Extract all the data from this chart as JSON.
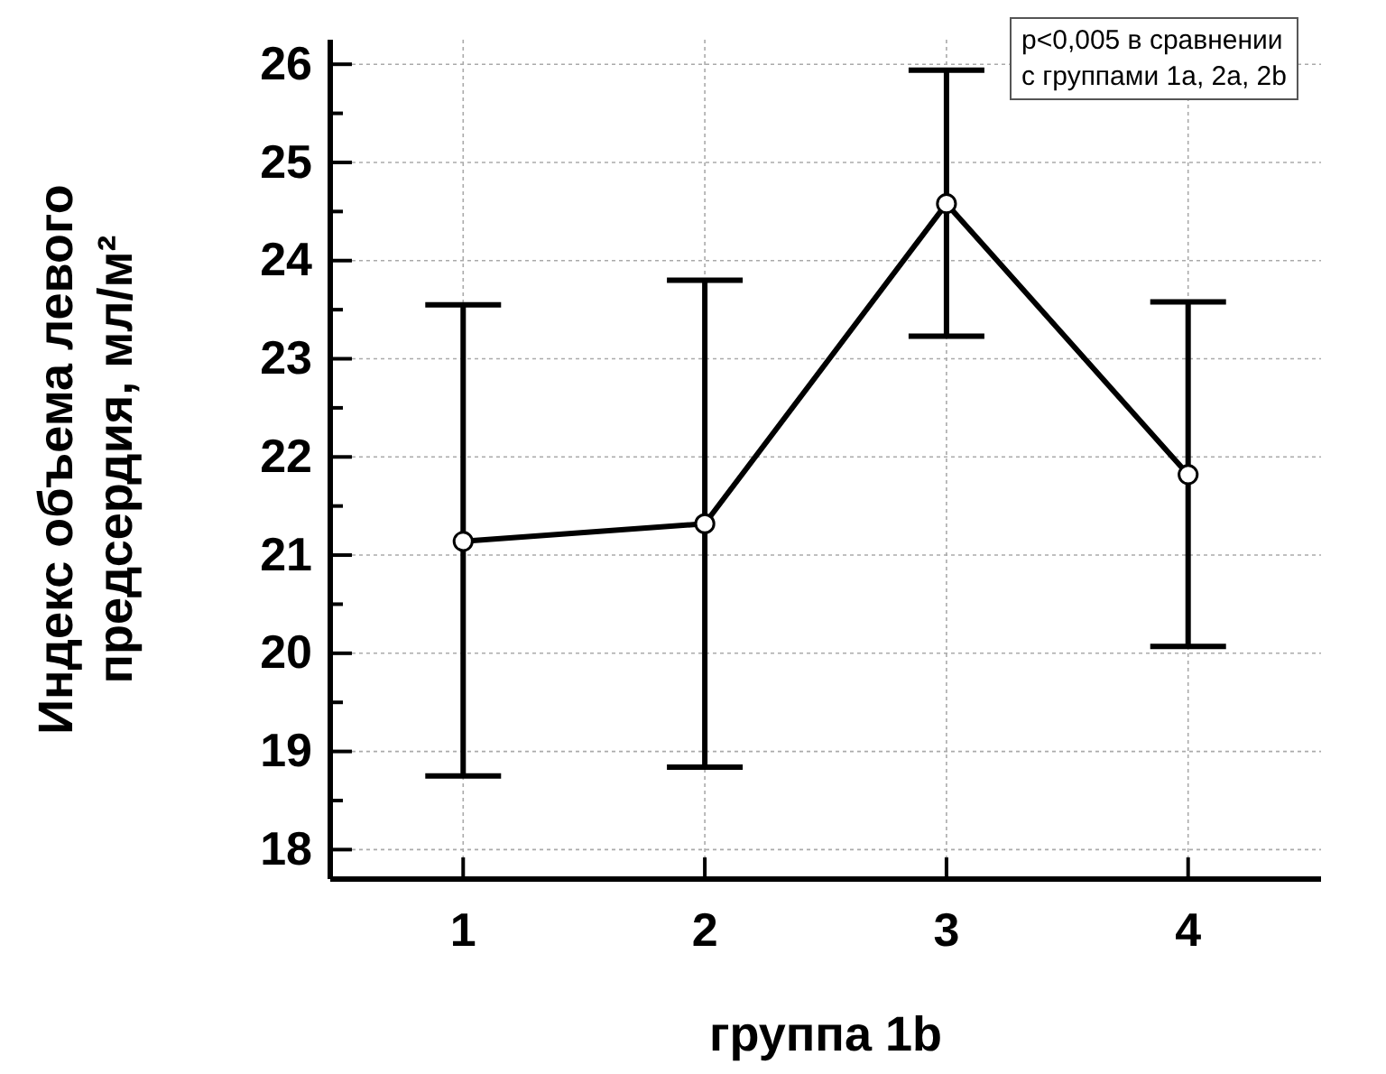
{
  "chart_data": {
    "type": "line",
    "xlabel": "группа 1b",
    "ylabel": "Индекс объема левого предсердия, мл/м²",
    "categories": [
      "1",
      "2",
      "3",
      "4"
    ],
    "color": "#000000",
    "values": [
      21.14,
      21.32,
      24.58,
      21.82
    ],
    "errors": [
      [
        18.75,
        23.55
      ],
      [
        18.84,
        23.8
      ],
      [
        23.23,
        25.94
      ],
      [
        20.07,
        23.58
      ]
    ],
    "ylim": [
      17.7,
      26.25
    ],
    "yticks": [
      18,
      {
        "value": 18.5,
        "label": null
      },
      19,
      {
        "value": 19.5,
        "label": null
      },
      20,
      {
        "value": 20.5,
        "label": null
      },
      21,
      {
        "value": 21.5,
        "label": null
      },
      22,
      {
        "value": 22.5,
        "label": null
      },
      23,
      {
        "value": 23.5,
        "label": null
      },
      24,
      {
        "value": 24.5,
        "label": null
      },
      25,
      {
        "value": 25.5,
        "label": null
      },
      26
    ],
    "grid": true,
    "marker": "circle",
    "line_style": "solid",
    "annotations": [
      "p<0,005 в сравнении с группами 1a, 2a, 2b"
    ]
  }
}
